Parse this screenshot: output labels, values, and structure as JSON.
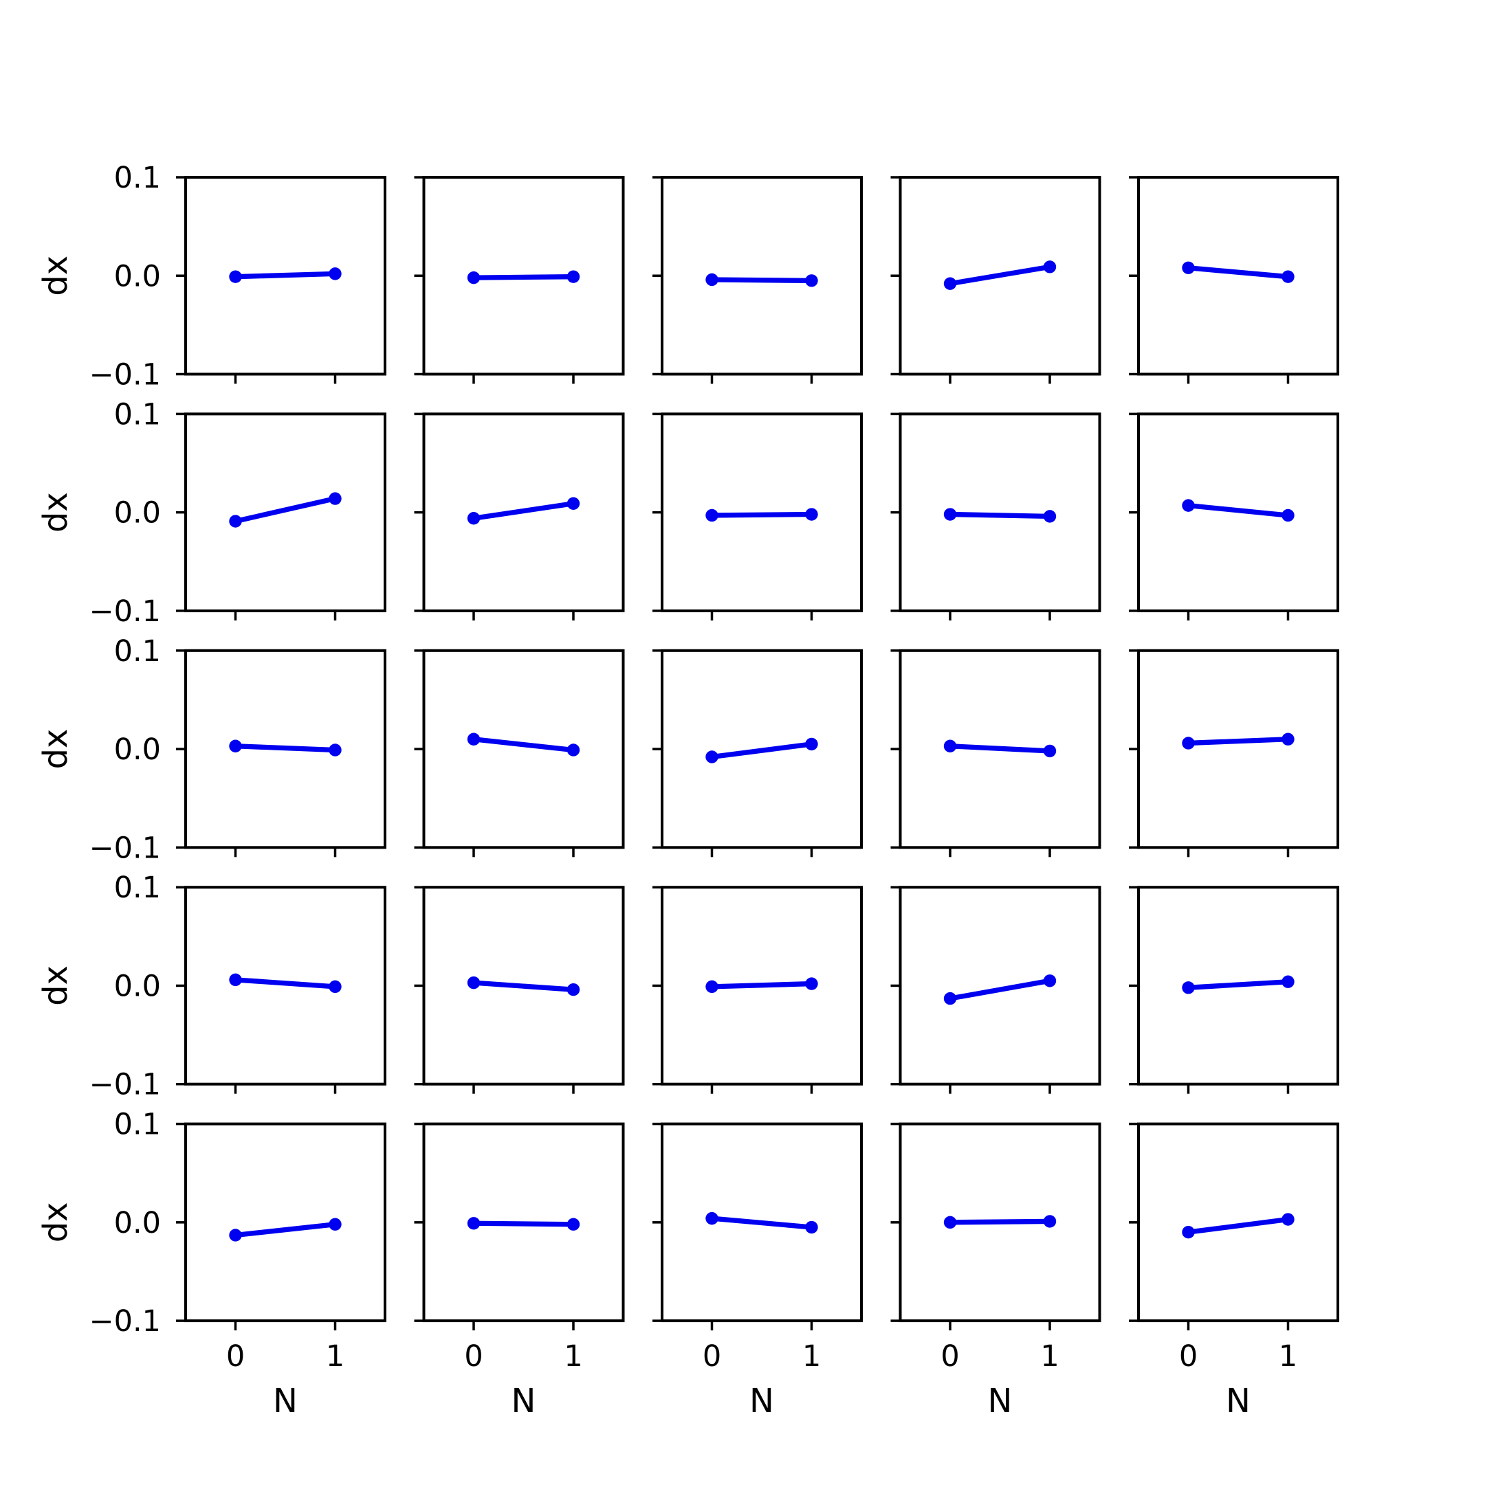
{
  "figure": {
    "background": "#ffffff",
    "axis_color": "#000000",
    "line_color": "#0000f0"
  },
  "chart_data": {
    "type": "line",
    "grid_rows": 5,
    "grid_cols": 5,
    "x": [
      0,
      1
    ],
    "xlabel": "N",
    "ylabel": "dx",
    "xlim": [
      -0.5,
      1.5
    ],
    "ylim": [
      -0.1,
      0.1
    ],
    "xticks": [
      0,
      1
    ],
    "xtick_labels": [
      "0",
      "1"
    ],
    "yticks": [
      0.1,
      0.0,
      -0.1
    ],
    "ytick_labels": [
      "0.1",
      "0.0",
      "−0.1"
    ],
    "grid_on": false,
    "legend": "none",
    "subplots": [
      {
        "row": 1,
        "col": 1,
        "dx": [
          -0.001,
          0.002
        ]
      },
      {
        "row": 1,
        "col": 2,
        "dx": [
          -0.002,
          -0.001
        ]
      },
      {
        "row": 1,
        "col": 3,
        "dx": [
          -0.004,
          -0.005
        ]
      },
      {
        "row": 1,
        "col": 4,
        "dx": [
          -0.008,
          0.009
        ]
      },
      {
        "row": 1,
        "col": 5,
        "dx": [
          0.008,
          -0.001
        ]
      },
      {
        "row": 2,
        "col": 1,
        "dx": [
          -0.009,
          0.014
        ]
      },
      {
        "row": 2,
        "col": 2,
        "dx": [
          -0.006,
          0.009
        ]
      },
      {
        "row": 2,
        "col": 3,
        "dx": [
          -0.003,
          -0.002
        ]
      },
      {
        "row": 2,
        "col": 4,
        "dx": [
          -0.002,
          -0.004
        ]
      },
      {
        "row": 2,
        "col": 5,
        "dx": [
          0.007,
          -0.003
        ]
      },
      {
        "row": 3,
        "col": 1,
        "dx": [
          0.003,
          -0.001
        ]
      },
      {
        "row": 3,
        "col": 2,
        "dx": [
          0.01,
          -0.001
        ]
      },
      {
        "row": 3,
        "col": 3,
        "dx": [
          -0.008,
          0.005
        ]
      },
      {
        "row": 3,
        "col": 4,
        "dx": [
          0.003,
          -0.002
        ]
      },
      {
        "row": 3,
        "col": 5,
        "dx": [
          0.006,
          0.01
        ]
      },
      {
        "row": 4,
        "col": 1,
        "dx": [
          0.006,
          -0.001
        ]
      },
      {
        "row": 4,
        "col": 2,
        "dx": [
          0.003,
          -0.004
        ]
      },
      {
        "row": 4,
        "col": 3,
        "dx": [
          -0.001,
          0.002
        ]
      },
      {
        "row": 4,
        "col": 4,
        "dx": [
          -0.013,
          0.005
        ]
      },
      {
        "row": 4,
        "col": 5,
        "dx": [
          -0.002,
          0.004
        ]
      },
      {
        "row": 5,
        "col": 1,
        "dx": [
          -0.013,
          -0.002
        ]
      },
      {
        "row": 5,
        "col": 2,
        "dx": [
          -0.001,
          -0.002
        ]
      },
      {
        "row": 5,
        "col": 3,
        "dx": [
          0.004,
          -0.005
        ]
      },
      {
        "row": 5,
        "col": 4,
        "dx": [
          0.0,
          0.001
        ]
      },
      {
        "row": 5,
        "col": 5,
        "dx": [
          -0.01,
          0.003
        ]
      }
    ]
  }
}
